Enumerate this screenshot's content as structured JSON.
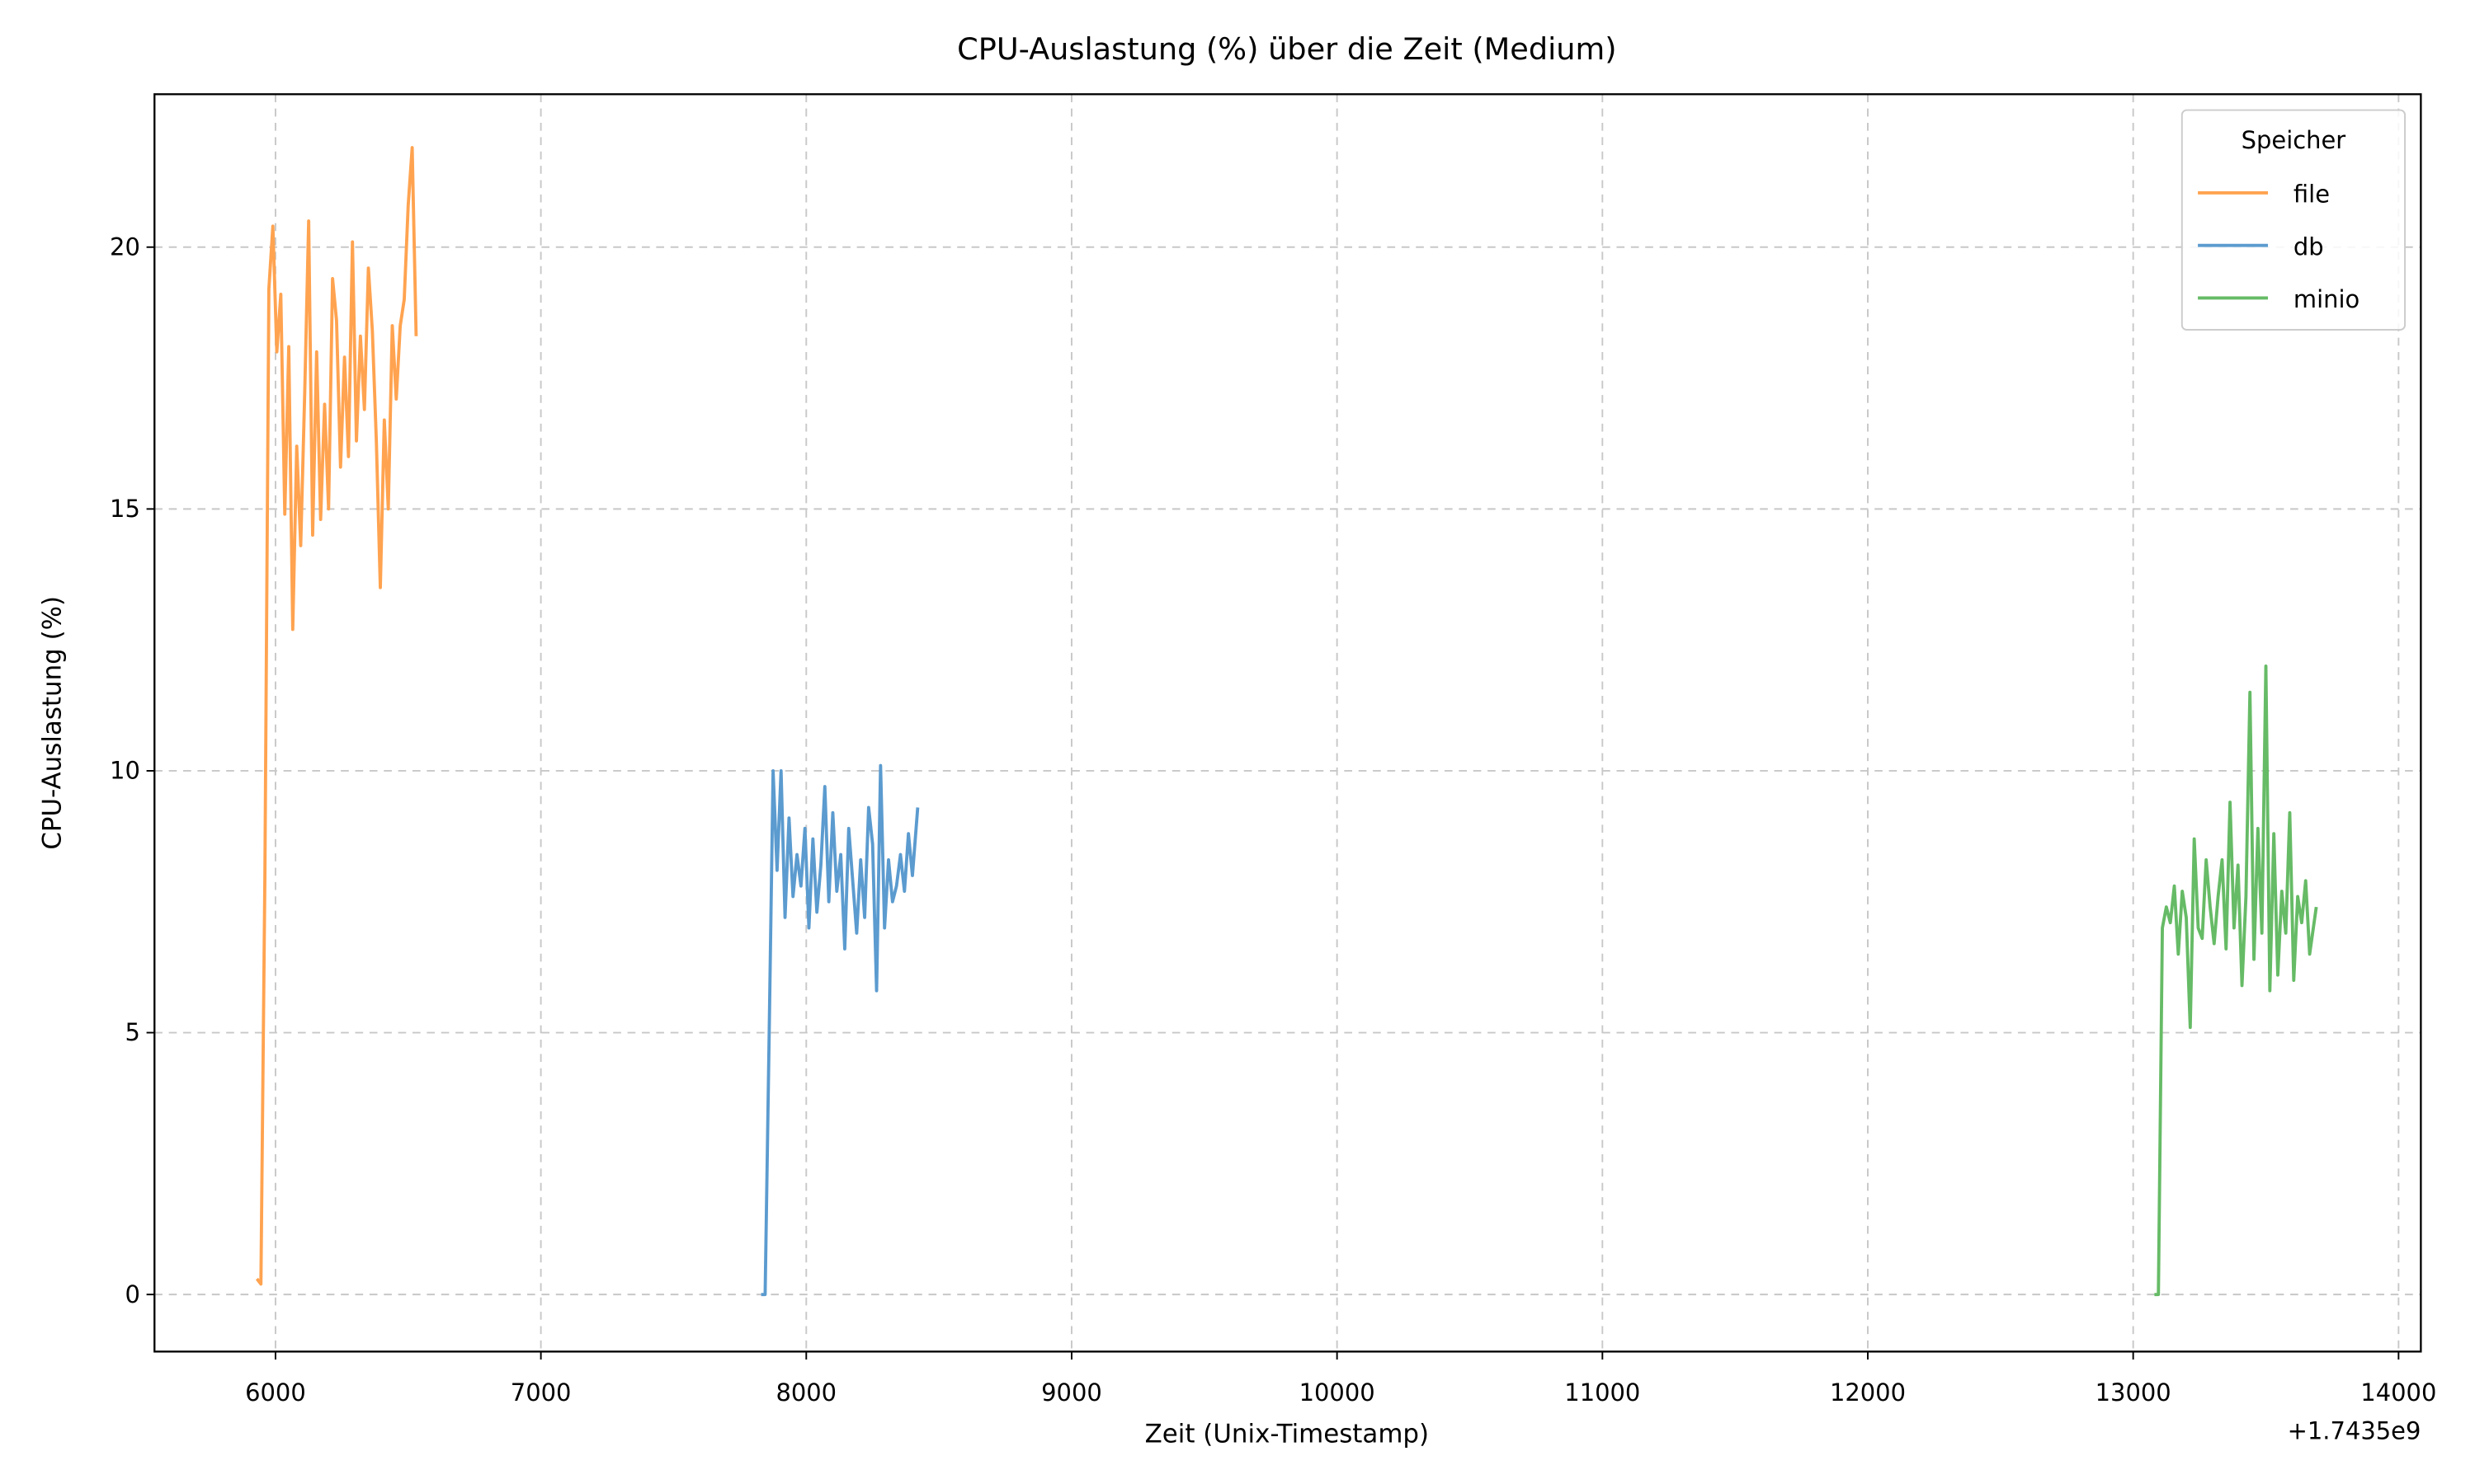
{
  "chart_data": {
    "type": "line",
    "title": "CPU-Auslastung (%) über die Zeit (Medium)",
    "x_label": "Zeit (Unix-Timestamp)",
    "y_label": "CPU-Auslastung (%)",
    "x_offset_label": "+1.7435e9",
    "legend_title": "Speicher",
    "legend": "upper right",
    "grid": true,
    "xlim": [
      5544,
      14084
    ],
    "ylim": [
      -1.09,
      22.92
    ],
    "xticks": [
      6000,
      7000,
      8000,
      9000,
      10000,
      11000,
      12000,
      13000,
      14000
    ],
    "yticks": [
      0,
      5,
      10,
      15,
      20
    ],
    "series": [
      {
        "name": "file",
        "color": "#ffa350",
        "x": [
          5930,
          5945,
          5960,
          5975,
          5990,
          6005,
          6020,
          6035,
          6050,
          6065,
          6080,
          6095,
          6110,
          6125,
          6140,
          6155,
          6170,
          6185,
          6200,
          6215,
          6230,
          6245,
          6260,
          6275,
          6290,
          6305,
          6320,
          6335,
          6350,
          6365,
          6380,
          6395,
          6410,
          6425,
          6440,
          6455,
          6470,
          6485,
          6500,
          6515,
          6530
        ],
        "values": [
          0.3,
          0.2,
          8.0,
          19.2,
          20.4,
          18.0,
          19.1,
          14.9,
          18.1,
          12.7,
          16.2,
          14.3,
          17.2,
          20.5,
          14.5,
          18.0,
          14.8,
          17.0,
          15.0,
          19.4,
          18.6,
          15.8,
          17.9,
          16.0,
          20.1,
          16.3,
          18.3,
          16.9,
          19.6,
          18.4,
          16.3,
          13.5,
          16.7,
          15.0,
          18.5,
          17.1,
          18.5,
          19.0,
          20.8,
          21.9,
          18.3
        ]
      },
      {
        "name": "db",
        "color": "#5b9bcf",
        "x": [
          7830,
          7845,
          7860,
          7875,
          7890,
          7905,
          7920,
          7935,
          7950,
          7965,
          7980,
          7995,
          8010,
          8025,
          8040,
          8055,
          8070,
          8085,
          8100,
          8115,
          8130,
          8145,
          8160,
          8175,
          8190,
          8205,
          8220,
          8235,
          8250,
          8265,
          8280,
          8295,
          8310,
          8325,
          8340,
          8355,
          8370,
          8385,
          8400,
          8420
        ],
        "values": [
          0.0,
          0.0,
          4.9,
          10.0,
          8.1,
          10.0,
          7.2,
          9.1,
          7.6,
          8.4,
          7.8,
          8.9,
          7.0,
          8.7,
          7.3,
          8.2,
          9.7,
          7.5,
          9.2,
          7.7,
          8.4,
          6.6,
          8.9,
          7.9,
          6.9,
          8.3,
          7.2,
          9.3,
          8.6,
          5.8,
          10.1,
          7.0,
          8.3,
          7.5,
          7.8,
          8.4,
          7.7,
          8.8,
          8.0,
          9.3
        ]
      },
      {
        "name": "minio",
        "color": "#66bb66",
        "x": [
          13080,
          13095,
          13110,
          13125,
          13140,
          13155,
          13170,
          13185,
          13200,
          13215,
          13230,
          13245,
          13260,
          13275,
          13290,
          13305,
          13320,
          13335,
          13350,
          13365,
          13380,
          13395,
          13410,
          13425,
          13440,
          13455,
          13470,
          13485,
          13500,
          13515,
          13530,
          13545,
          13560,
          13575,
          13590,
          13605,
          13620,
          13635,
          13650,
          13665,
          13690
        ],
        "values": [
          0.0,
          0.0,
          7.0,
          7.4,
          7.1,
          7.8,
          6.5,
          7.7,
          7.2,
          5.1,
          8.7,
          7.0,
          6.8,
          8.3,
          7.4,
          6.7,
          7.6,
          8.3,
          6.6,
          9.4,
          7.0,
          8.2,
          5.9,
          7.6,
          11.5,
          6.4,
          8.9,
          6.9,
          12.0,
          5.8,
          8.8,
          6.1,
          7.7,
          6.9,
          9.2,
          6.0,
          7.6,
          7.1,
          7.9,
          6.5,
          7.4
        ]
      }
    ]
  }
}
